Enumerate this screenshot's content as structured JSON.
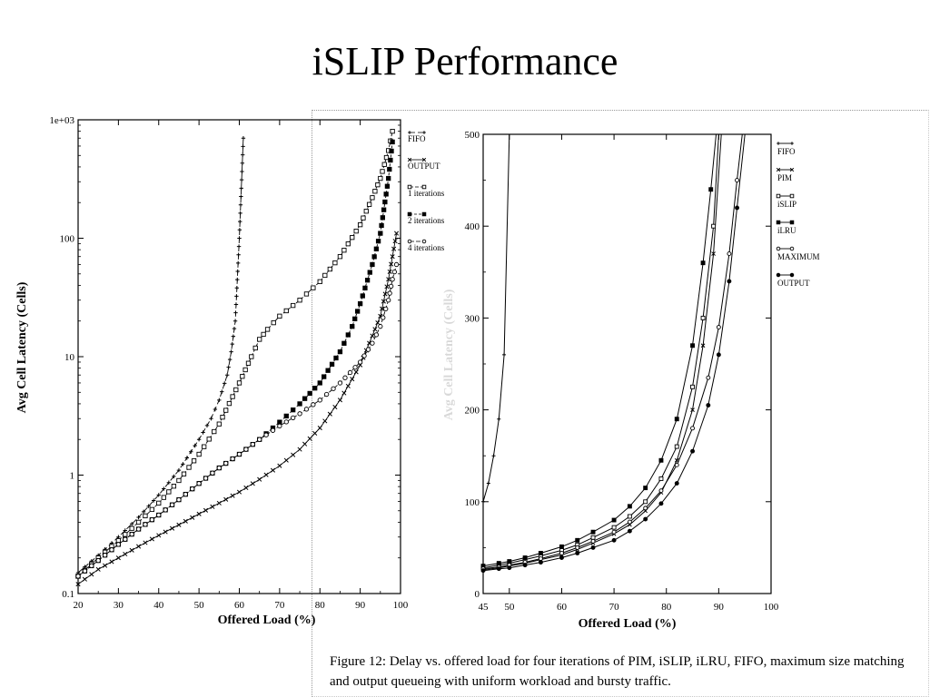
{
  "slide": {
    "title": "iSLIP Performance"
  },
  "caption": "Figure 12: Delay vs. offered load for four iterations of PIM, iSLIP, iLRU, FIFO, maximum size matching and output queueing with uniform workload and bursty traffic.",
  "chart_data": [
    {
      "type": "line",
      "title": "",
      "xlabel": "Offered Load (%)",
      "ylabel": "Avg Cell Latency (Cells)",
      "xlim": [
        20,
        100
      ],
      "ylim": [
        0.1,
        1000
      ],
      "yscale": "log",
      "xticks": [
        "20",
        "30",
        "40",
        "50",
        "60",
        "70",
        "80",
        "90",
        "100"
      ],
      "yticks": [
        "0.1",
        "1",
        "10",
        "100",
        "1e+03"
      ],
      "grid": false,
      "legend_position": "right",
      "series": [
        {
          "name": "FIFO",
          "marker": "+",
          "dash": "6,3",
          "x": [
            20,
            25,
            30,
            35,
            40,
            45,
            50,
            53,
            55,
            57,
            58,
            59,
            60,
            61
          ],
          "y": [
            0.15,
            0.21,
            0.3,
            0.44,
            0.68,
            1.1,
            2.0,
            3.0,
            4.3,
            7,
            11,
            20,
            100,
            700
          ]
        },
        {
          "name": "OUTPUT",
          "marker": "x",
          "dash": "",
          "x": [
            20,
            25,
            30,
            35,
            40,
            45,
            50,
            55,
            60,
            65,
            70,
            75,
            80,
            85,
            90,
            93,
            95,
            97,
            98,
            99
          ],
          "y": [
            0.12,
            0.16,
            0.2,
            0.25,
            0.31,
            0.38,
            0.47,
            0.58,
            0.72,
            0.92,
            1.2,
            1.65,
            2.5,
            4.3,
            8.5,
            15,
            22,
            45,
            70,
            110
          ]
        },
        {
          "name": "1 iterations",
          "marker": "square",
          "dash": "4,2",
          "x": [
            20,
            25,
            30,
            35,
            40,
            45,
            50,
            55,
            60,
            63,
            65,
            67,
            70,
            75,
            80,
            85,
            90,
            93,
            95,
            97,
            98
          ],
          "y": [
            0.14,
            0.2,
            0.28,
            0.4,
            0.58,
            0.9,
            1.5,
            2.7,
            6,
            10,
            14,
            17,
            22,
            30,
            43,
            70,
            130,
            220,
            320,
            550,
            800
          ]
        },
        {
          "name": "2 iterations",
          "marker": "filled-square",
          "dash": "3,2",
          "x": [
            20,
            25,
            30,
            35,
            40,
            45,
            50,
            55,
            60,
            65,
            70,
            75,
            80,
            85,
            88,
            90,
            93,
            95,
            97,
            98
          ],
          "y": [
            0.14,
            0.19,
            0.26,
            0.35,
            0.46,
            0.62,
            0.85,
            1.15,
            1.5,
            2.0,
            2.8,
            4.0,
            6.0,
            11,
            18,
            28,
            60,
            110,
            320,
            650
          ]
        },
        {
          "name": "4 iterations",
          "marker": "circle",
          "dash": "5,2",
          "x": [
            20,
            25,
            30,
            35,
            40,
            45,
            50,
            55,
            60,
            65,
            70,
            75,
            80,
            85,
            90,
            93,
            95,
            97,
            98,
            99
          ],
          "y": [
            0.14,
            0.19,
            0.26,
            0.35,
            0.46,
            0.62,
            0.85,
            1.15,
            1.5,
            2.0,
            2.6,
            3.3,
            4.3,
            6,
            9,
            13,
            18,
            30,
            45,
            60
          ]
        }
      ]
    },
    {
      "type": "line",
      "title": "",
      "xlabel": "Offered Load (%)",
      "ylabel": "Avg Cell Latency (Cells)",
      "xlim": [
        45,
        100
      ],
      "ylim": [
        0,
        500
      ],
      "yscale": "linear",
      "xticks": [
        "45",
        "50",
        "60",
        "70",
        "80",
        "90",
        "100"
      ],
      "yticks": [
        "0",
        "100",
        "200",
        "300",
        "400",
        "500"
      ],
      "grid": false,
      "legend_position": "right",
      "series": [
        {
          "name": "FIFO",
          "marker": "+",
          "x": [
            45,
            46,
            47,
            48,
            49,
            50
          ],
          "y": [
            100,
            120,
            150,
            190,
            260,
            500
          ]
        },
        {
          "name": "PIM",
          "marker": "x",
          "x": [
            45,
            48,
            50,
            53,
            56,
            60,
            63,
            66,
            70,
            73,
            76,
            79,
            82,
            85,
            87,
            89,
            90.5
          ],
          "y": [
            26,
            28,
            30,
            33,
            37,
            42,
            48,
            55,
            65,
            75,
            90,
            110,
            145,
            200,
            270,
            370,
            500
          ]
        },
        {
          "name": "iSLIP",
          "marker": "square",
          "x": [
            45,
            48,
            50,
            53,
            56,
            60,
            63,
            66,
            70,
            73,
            76,
            79,
            82,
            85,
            87,
            89,
            90
          ],
          "y": [
            28,
            31,
            33,
            37,
            41,
            47,
            53,
            61,
            72,
            84,
            100,
            125,
            160,
            225,
            300,
            400,
            500
          ]
        },
        {
          "name": "iLRU",
          "marker": "filled-square",
          "x": [
            45,
            48,
            50,
            53,
            56,
            60,
            63,
            66,
            70,
            73,
            76,
            79,
            82,
            85,
            87,
            88.5,
            89.5
          ],
          "y": [
            30,
            33,
            35,
            39,
            44,
            51,
            58,
            67,
            80,
            95,
            115,
            145,
            190,
            270,
            360,
            440,
            500
          ]
        },
        {
          "name": "MAXIMUM",
          "marker": "circle",
          "x": [
            45,
            48,
            50,
            53,
            56,
            60,
            63,
            66,
            70,
            73,
            76,
            79,
            82,
            85,
            88,
            90,
            92,
            93.5,
            94.5
          ],
          "y": [
            27,
            29,
            31,
            34,
            38,
            44,
            50,
            57,
            67,
            78,
            93,
            112,
            140,
            180,
            235,
            290,
            370,
            450,
            500
          ]
        },
        {
          "name": "OUTPUT",
          "marker": "filled-circle",
          "x": [
            45,
            48,
            50,
            53,
            56,
            60,
            63,
            66,
            70,
            73,
            76,
            79,
            82,
            85,
            88,
            90,
            92,
            93.5,
            95
          ],
          "y": [
            25,
            27,
            28,
            31,
            34,
            39,
            44,
            50,
            58,
            68,
            81,
            98,
            120,
            155,
            205,
            260,
            340,
            420,
            500
          ]
        }
      ]
    }
  ]
}
